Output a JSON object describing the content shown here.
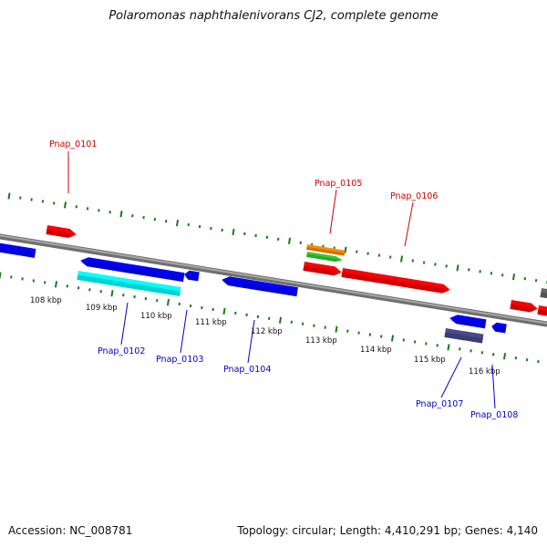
{
  "title": "Polaromonas naphthalenivorans CJ2, complete genome",
  "footer": {
    "accession": "Accession: NC_008781",
    "summary": "Topology: circular; Length: 4,410,291 bp; Genes: 4,140"
  },
  "colors": {
    "forward_label": "#cc0000",
    "reverse_label": "#0000cc",
    "tick_green": "#1a7a1a",
    "backbone": "#8c8c8c"
  },
  "scale": {
    "unit": "kbp",
    "ticks": [
      {
        "kbp": 108,
        "label": "108 kbp"
      },
      {
        "kbp": 109,
        "label": "109 kbp"
      },
      {
        "kbp": 110,
        "label": "110 kbp"
      },
      {
        "kbp": 111,
        "label": "111 kbp"
      },
      {
        "kbp": 112,
        "label": "112 kbp"
      },
      {
        "kbp": 113,
        "label": "113 kbp"
      },
      {
        "kbp": 114,
        "label": "114 kbp"
      },
      {
        "kbp": 115,
        "label": "115 kbp"
      },
      {
        "kbp": 116,
        "label": "116 kbp"
      }
    ]
  },
  "gene_labels": [
    {
      "id": "Pnap_0101",
      "strand": "forward"
    },
    {
      "id": "Pnap_0102",
      "strand": "reverse"
    },
    {
      "id": "Pnap_0103",
      "strand": "reverse"
    },
    {
      "id": "Pnap_0104",
      "strand": "reverse"
    },
    {
      "id": "Pnap_0105",
      "strand": "forward"
    },
    {
      "id": "Pnap_0106",
      "strand": "forward"
    },
    {
      "id": "Pnap_0107",
      "strand": "reverse"
    },
    {
      "id": "Pnap_0108",
      "strand": "reverse"
    }
  ],
  "feature_colors": {
    "cds_forward": "#ff0000",
    "cds_reverse": "#0000ff",
    "rrna": "#00ffff",
    "trna_orange": "#ff8c00",
    "trna_green": "#33cc33",
    "other_purple": "#4a4a8c",
    "other_gray": "#666666"
  }
}
